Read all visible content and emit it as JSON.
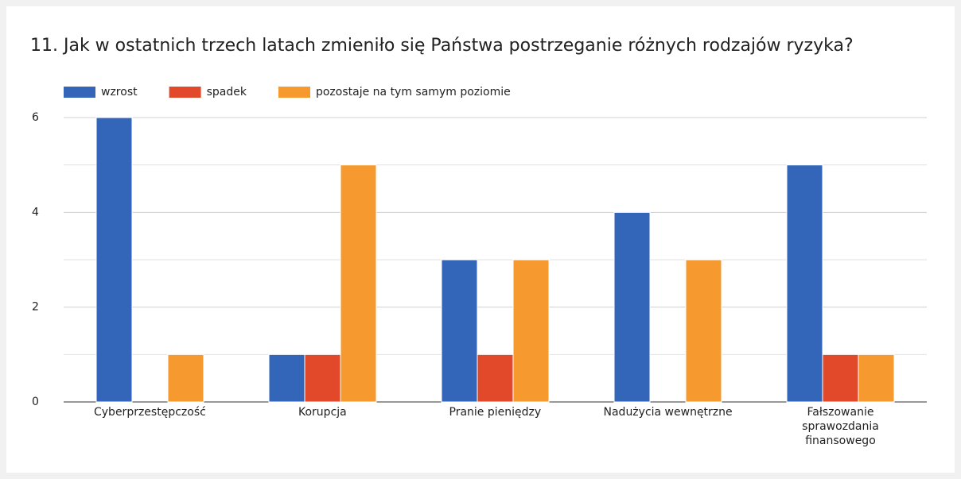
{
  "chart_data": {
    "type": "bar",
    "title": "11. Jak w ostatnich trzech latach zmieniło się Państwa postrzeganie różnych rodzajów ryzyka?",
    "categories": [
      "Cyberprzestępczość",
      "Korupcja",
      "Pranie pieniędzy",
      "Nadużycia wewnętrzne",
      "Fałszowanie sprawozdania finansowego"
    ],
    "series": [
      {
        "name": "wzrost",
        "color": "#3366b8",
        "values": [
          6,
          1,
          3,
          4,
          5
        ]
      },
      {
        "name": "spadek",
        "color": "#e2492a",
        "values": [
          0,
          1,
          1,
          0,
          1
        ]
      },
      {
        "name": "pozostaje na tym samym poziomie",
        "color": "#f69a30",
        "values": [
          1,
          5,
          3,
          3,
          1
        ]
      }
    ],
    "ylim": [
      0,
      6
    ],
    "yticks": [
      0,
      2,
      4,
      6
    ],
    "minor_yticks": [
      1,
      3,
      5
    ],
    "grid": true,
    "legend": "top"
  }
}
